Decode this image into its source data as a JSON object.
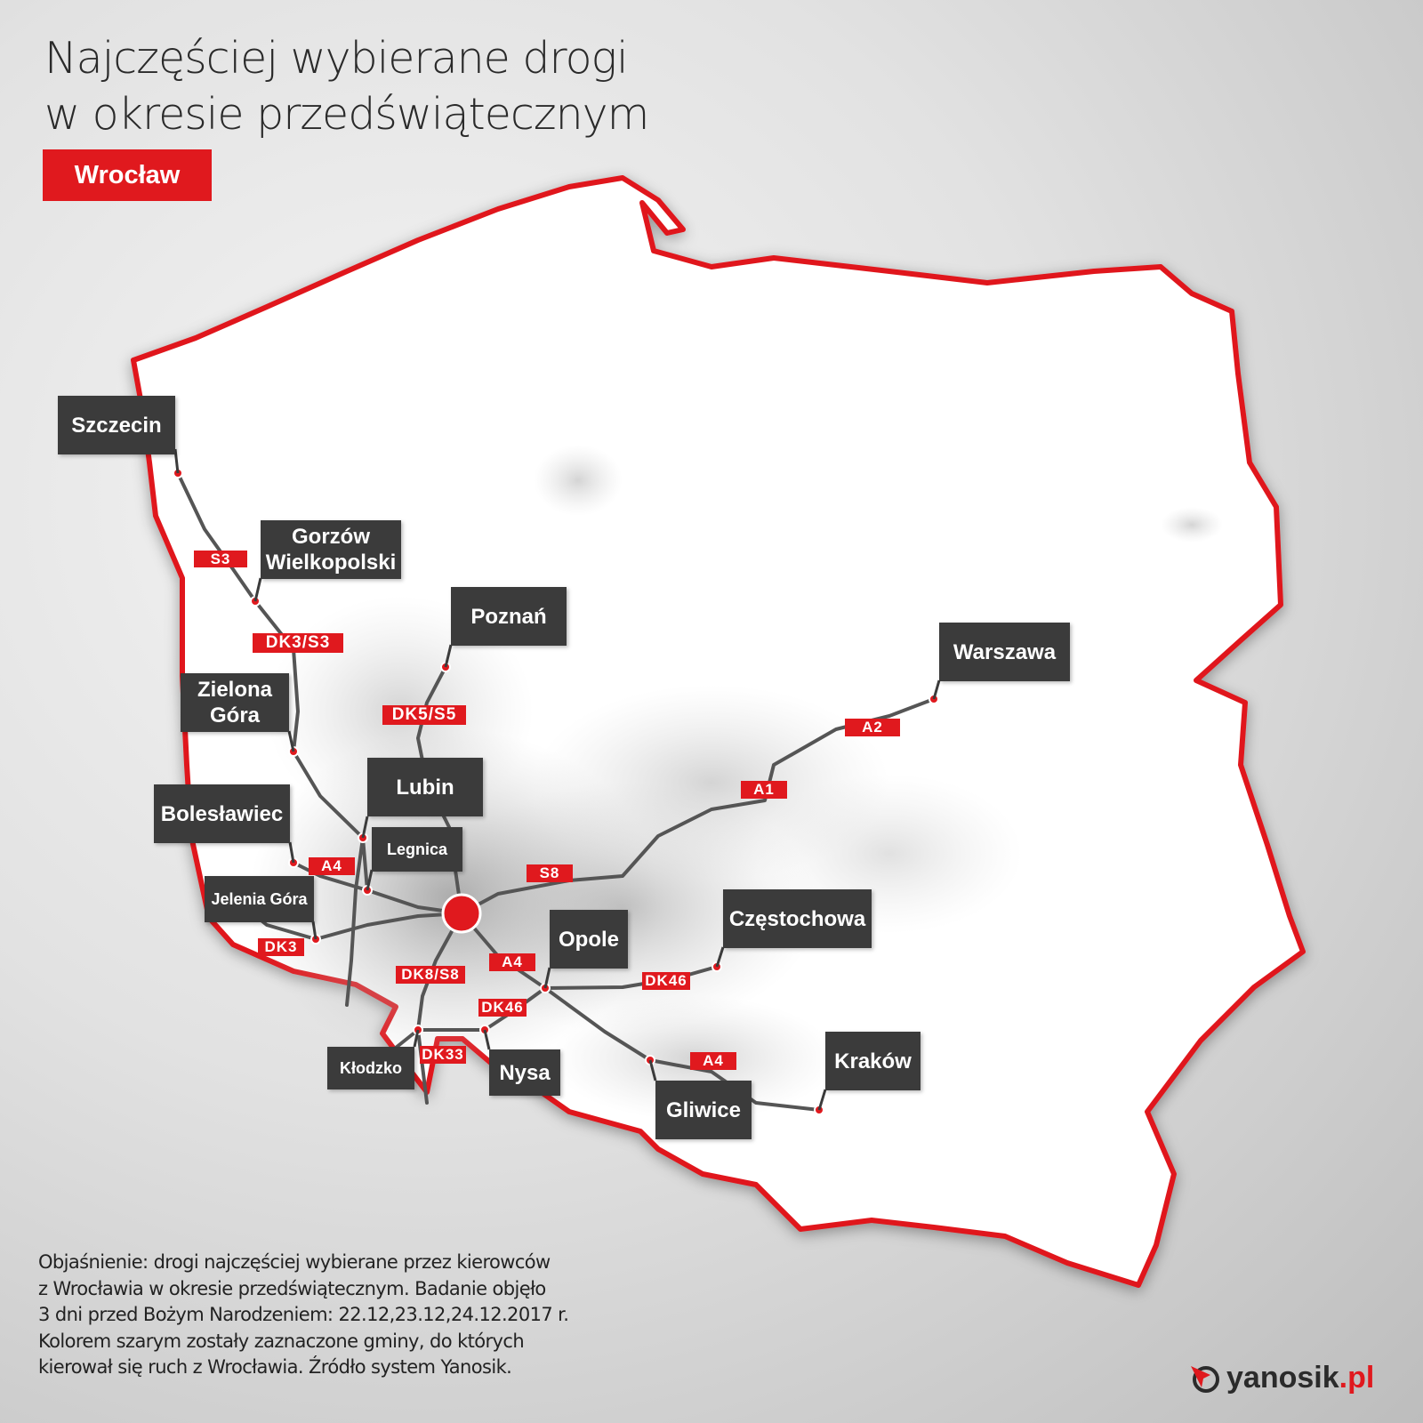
{
  "title": {
    "line1": "Najczęściej wybierane drogi",
    "line2": "w okresie przedświątecznym"
  },
  "origin_tag": "Wrocław",
  "colors": {
    "accent": "#e0191e",
    "label_bg": "#3b3b3b",
    "road": "#555555",
    "municipality": "#bdbdbd"
  },
  "cities": {
    "szczecin": "Szczecin",
    "gorzow": "Gorzów Wielkopolski",
    "poznan": "Poznań",
    "zielona_gora": "Zielona Góra",
    "lubin": "Lubin",
    "boleslawiec": "Bolesławiec",
    "legnica": "Legnica",
    "jelenia_gora": "Jelenia Góra",
    "opole": "Opole",
    "czestochowa": "Częstochowa",
    "warszawa": "Warszawa",
    "krakow": "Kraków",
    "gliwice": "Gliwice",
    "nysa": "Nysa",
    "klodzko": "Kłodzko"
  },
  "roads": {
    "s3": "S3",
    "dk3_s3": "DK3/S3",
    "dk5_s5": "DK5/S5",
    "a2": "A2",
    "a1": "A1",
    "s8": "S8",
    "a4_west": "A4",
    "dk3": "DK3",
    "a4_opole": "A4",
    "dk8_s8": "DK8/S8",
    "dk46_nysa": "DK46",
    "dk46_czest": "DK46",
    "dk33": "DK33",
    "a4_krakow": "A4"
  },
  "note": {
    "line1": "Objaśnienie: drogi najczęściej wybierane przez kierowców",
    "line2": "z Wrocławia w okresie przedświątecznym. Badanie objęło",
    "line3": "3 dni przed Bożym Narodzeniem: 22.12,23.12,24.12.2017 r.",
    "line4": "Kolorem szarym zostały zaznaczone gminy, do których",
    "line5": "kierował się ruch z Wrocławia. Źródło system Yanosik."
  },
  "logo": {
    "name": "yanosik",
    "suffix": ".pl"
  }
}
